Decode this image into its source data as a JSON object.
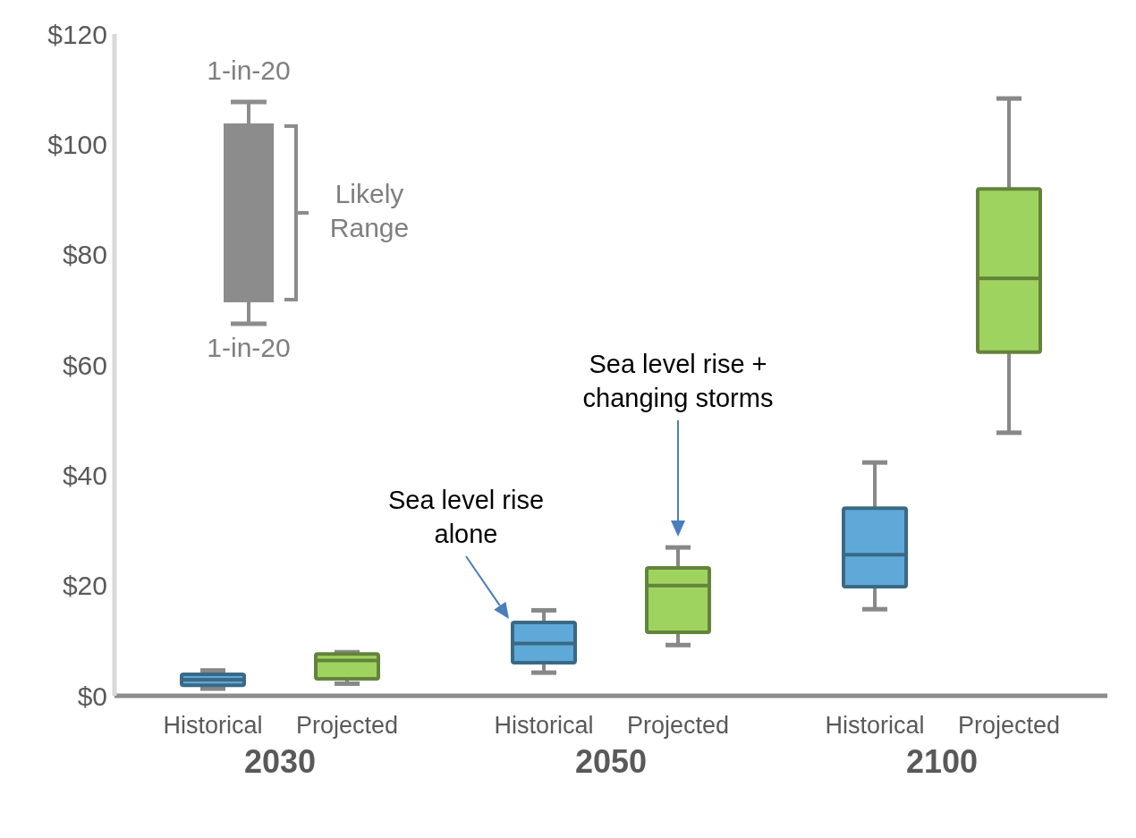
{
  "chart_data": {
    "type": "box",
    "categories": [
      "2030",
      "2050",
      "2100"
    ],
    "series": [
      {
        "name": "Historical",
        "color": "#5ea9d8",
        "boxes": [
          {
            "low": 1.3,
            "q1": 1.9,
            "median": 2.9,
            "q3": 3.9,
            "high": 4.6
          },
          {
            "low": 4.2,
            "q1": 6.0,
            "median": 9.5,
            "q3": 13.3,
            "high": 15.5
          },
          {
            "low": 15.7,
            "q1": 19.8,
            "median": 25.6,
            "q3": 34.0,
            "high": 42.3
          }
        ]
      },
      {
        "name": "Projected",
        "color": "#9fd35f",
        "boxes": [
          {
            "low": 2.2,
            "q1": 3.1,
            "median": 6.4,
            "q3": 7.6,
            "high": 7.9
          },
          {
            "low": 9.2,
            "q1": 11.5,
            "median": 20.0,
            "q3": 23.2,
            "high": 26.9
          },
          {
            "low": 47.7,
            "q1": 62.3,
            "median": 75.7,
            "q3": 91.9,
            "high": 108.3
          }
        ]
      }
    ],
    "ylim": [
      0,
      120
    ],
    "yticks": [
      {
        "value": 0,
        "label": "$0"
      },
      {
        "value": 20,
        "label": "$20"
      },
      {
        "value": 40,
        "label": "$40"
      },
      {
        "value": 60,
        "label": "$60"
      },
      {
        "value": 80,
        "label": "$80"
      },
      {
        "value": 100,
        "label": "$100"
      },
      {
        "value": 120,
        "label": "$120"
      }
    ],
    "grid": false,
    "legend": false,
    "annotations": [
      "1-in-20",
      "1-in-20",
      "Likely Range",
      "Sea level rise alone",
      "Sea level rise + changing storms"
    ]
  }
}
